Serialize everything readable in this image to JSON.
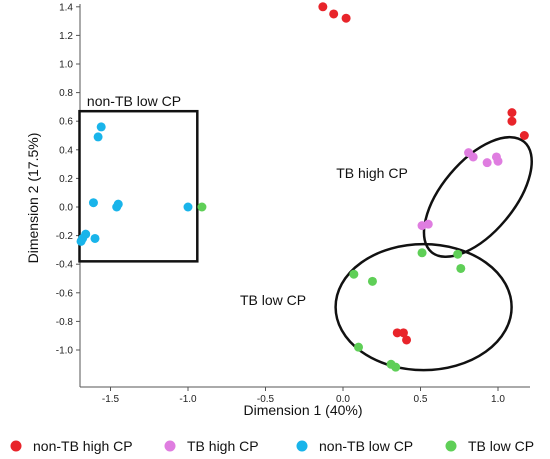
{
  "chart_data": {
    "type": "scatter",
    "xlabel": "Dimension 1 (40%)",
    "ylabel": "Dimension 2 (17.5%)",
    "xlim": [
      -1.7,
      1.2
    ],
    "ylim": [
      -1.1,
      1.45
    ],
    "xticks": [
      -1.5,
      -1.0,
      -0.5,
      0.0,
      0.5,
      1.0
    ],
    "xtick_labels": [
      "-1.5",
      "-1.0",
      "-0.5",
      "0.0",
      "0.5",
      "1.0"
    ],
    "yticks": [
      1.4,
      1.2,
      1.0,
      0.8,
      0.6,
      0.4,
      0.2,
      0.0,
      -0.2,
      -0.4,
      -0.6,
      -0.8,
      -1.0
    ],
    "ytick_labels": [
      "1.4",
      "1.2",
      "1.0",
      "0.8",
      "0.6",
      "0.4",
      "0.2",
      "0.0",
      "-0.2",
      "-0.4",
      "-0.6",
      "-0.8",
      "-1.0"
    ],
    "grid": false,
    "legend_position": "bottom",
    "series": [
      {
        "name": "non-TB high CP",
        "color": "#e8242a",
        "points": [
          [
            -0.13,
            1.4
          ],
          [
            -0.06,
            1.35
          ],
          [
            0.02,
            1.32
          ],
          [
            1.09,
            0.66
          ],
          [
            1.09,
            0.6
          ],
          [
            1.17,
            0.5
          ],
          [
            0.35,
            -0.88
          ],
          [
            0.39,
            -0.88
          ],
          [
            0.41,
            -0.93
          ]
        ]
      },
      {
        "name": "TB high CP",
        "color": "#df7de0",
        "points": [
          [
            0.81,
            0.38
          ],
          [
            0.84,
            0.35
          ],
          [
            0.93,
            0.31
          ],
          [
            0.99,
            0.35
          ],
          [
            1.0,
            0.32
          ],
          [
            0.51,
            -0.13
          ],
          [
            0.55,
            -0.12
          ]
        ]
      },
      {
        "name": "non-TB low CP",
        "color": "#19b4ea",
        "points": [
          [
            -1.56,
            0.56
          ],
          [
            -1.58,
            0.49
          ],
          [
            -1.61,
            0.03
          ],
          [
            -1.46,
            0.0
          ],
          [
            -1.45,
            0.02
          ],
          [
            -1.0,
            0.0
          ],
          [
            -1.68,
            -0.22
          ],
          [
            -1.66,
            -0.19
          ],
          [
            -1.6,
            -0.22
          ],
          [
            -1.69,
            -0.24
          ]
        ]
      },
      {
        "name": "TB low CP",
        "color": "#5fcf57",
        "points": [
          [
            -0.91,
            0.0
          ],
          [
            0.51,
            -0.32
          ],
          [
            0.74,
            -0.33
          ],
          [
            0.76,
            -0.43
          ],
          [
            0.07,
            -0.47
          ],
          [
            0.19,
            -0.52
          ],
          [
            0.1,
            -0.98
          ],
          [
            0.31,
            -1.1
          ],
          [
            0.34,
            -1.12
          ]
        ]
      }
    ],
    "annotations": [
      {
        "text": "non-TB low CP",
        "shape": "rectangle",
        "x_range": [
          -1.7,
          -0.94
        ],
        "y_range": [
          -0.38,
          0.67
        ]
      },
      {
        "text": "TB high CP",
        "shape": "ellipse",
        "center": [
          0.87,
          0.07
        ],
        "rotation_deg": -50
      },
      {
        "text": "TB low CP",
        "shape": "ellipse",
        "center": [
          0.52,
          -0.7
        ]
      }
    ]
  }
}
